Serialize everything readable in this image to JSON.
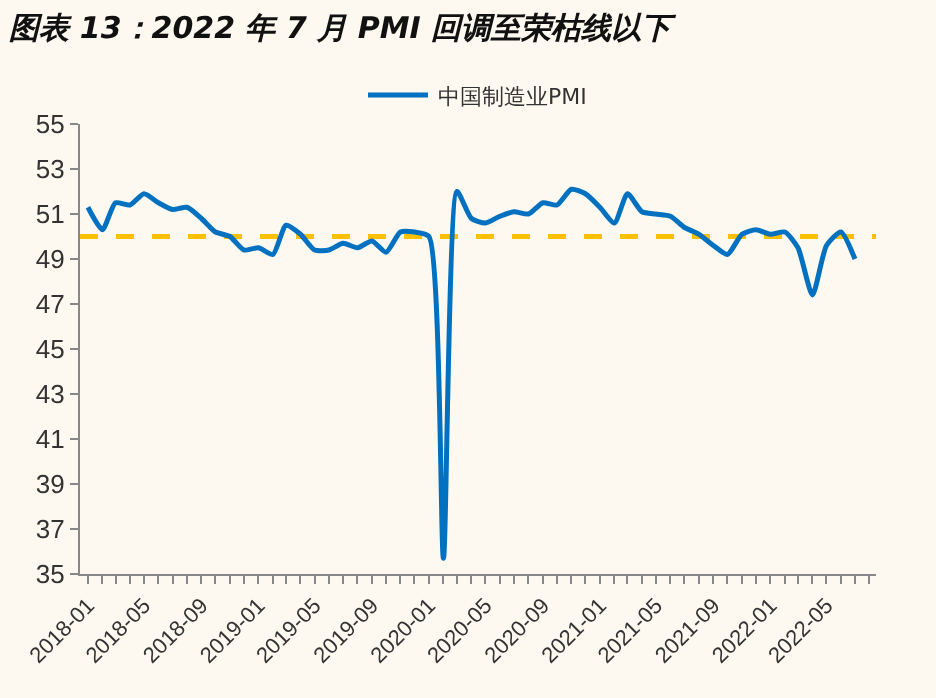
{
  "chart_data": {
    "type": "line",
    "title": "图表 13：2022 年 7 月 PMI 回调至荣枯线以下",
    "x": [
      "2018-01",
      "2018-02",
      "2018-03",
      "2018-04",
      "2018-05",
      "2018-06",
      "2018-07",
      "2018-08",
      "2018-09",
      "2018-10",
      "2018-11",
      "2018-12",
      "2019-01",
      "2019-02",
      "2019-03",
      "2019-04",
      "2019-05",
      "2019-06",
      "2019-07",
      "2019-08",
      "2019-09",
      "2019-10",
      "2019-11",
      "2019-12",
      "2020-01",
      "2020-02",
      "2020-03",
      "2020-04",
      "2020-05",
      "2020-06",
      "2020-07",
      "2020-08",
      "2020-09",
      "2020-10",
      "2020-11",
      "2020-12",
      "2021-01",
      "2021-02",
      "2021-03",
      "2021-04",
      "2021-05",
      "2021-06",
      "2021-07",
      "2021-08",
      "2021-09",
      "2021-10",
      "2021-11",
      "2021-12",
      "2022-01",
      "2022-02",
      "2022-03",
      "2022-04",
      "2022-05",
      "2022-06",
      "2022-07"
    ],
    "series": [
      {
        "name": "中国制造业PMI",
        "color": "#0070c0",
        "values": [
          51.3,
          50.3,
          51.5,
          51.4,
          51.9,
          51.5,
          51.2,
          51.3,
          50.8,
          50.2,
          50.0,
          49.4,
          49.5,
          49.2,
          50.5,
          50.1,
          49.4,
          49.4,
          49.7,
          49.5,
          49.8,
          49.3,
          50.2,
          50.2,
          50.0,
          35.7,
          52.0,
          50.8,
          50.6,
          50.9,
          51.1,
          51.0,
          51.5,
          51.4,
          52.1,
          51.9,
          51.3,
          50.6,
          51.9,
          51.1,
          51.0,
          50.9,
          50.4,
          50.1,
          49.6,
          49.2,
          50.1,
          50.3,
          50.1,
          50.2,
          49.5,
          47.4,
          49.6,
          50.2,
          49.0
        ]
      }
    ],
    "xlim": [
      "2017-12-15",
      "2022-08-15"
    ],
    "xticks": [
      "2018-01",
      "2018-05",
      "2018-09",
      "2019-01",
      "2019-05",
      "2019-09",
      "2020-01",
      "2020-05",
      "2020-09",
      "2021-01",
      "2021-05",
      "2021-09",
      "2022-01",
      "2022-05"
    ],
    "ylim": [
      35,
      55
    ],
    "yticks": [
      35,
      37,
      39,
      41,
      43,
      45,
      47,
      49,
      51,
      53,
      55
    ],
    "ref_lines": [
      {
        "axis": "y",
        "value": 50,
        "color": "#ffc000",
        "line_style": "dashed"
      }
    ],
    "legend": "top",
    "grid": false,
    "marker": "none",
    "line_style": "solid"
  }
}
